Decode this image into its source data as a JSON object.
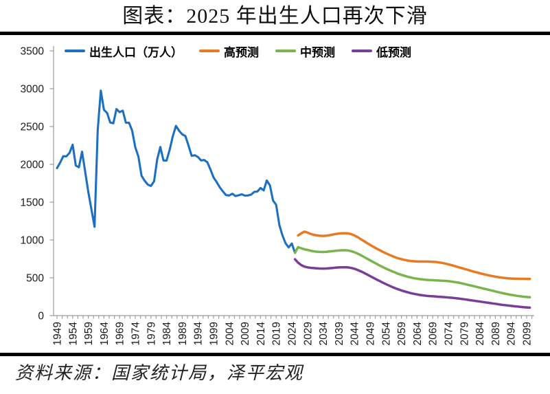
{
  "page": {
    "title": "图表：2025 年出生人口再次下滑",
    "source": "资料来源：国家统计局，泽平宏观"
  },
  "legend": {
    "items": [
      {
        "label": "出生人口（万人）",
        "color": "#1D70C1"
      },
      {
        "label": "高预测",
        "color": "#E87A21"
      },
      {
        "label": "中预测",
        "color": "#79B54A"
      },
      {
        "label": "低预测",
        "color": "#7A3D98"
      }
    ]
  },
  "chart_data": {
    "type": "line",
    "title": "图表：2025 年出生人口再次下滑",
    "xlabel": "",
    "ylabel": "出生人口（万人）",
    "ylim": [
      0,
      3500
    ],
    "x_range": [
      1949,
      2100
    ],
    "grid": false,
    "legend_position": "top",
    "axis_color": "#9B9B9B",
    "tick_label_color": "#1a1a1a",
    "y_ticks": [
      0,
      500,
      1000,
      1500,
      2000,
      2500,
      3000,
      3500
    ],
    "x_ticks": [
      1949,
      1954,
      1959,
      1964,
      1969,
      1974,
      1979,
      1984,
      1989,
      1994,
      1999,
      2004,
      2009,
      2014,
      2019,
      2024,
      2029,
      2034,
      2039,
      2044,
      2049,
      2054,
      2059,
      2064,
      2069,
      2074,
      2079,
      2084,
      2089,
      2094,
      2099
    ],
    "series": [
      {
        "name": "出生人口（万人）",
        "key": "birth",
        "color": "#1D70C1",
        "start_year": 1949,
        "values": [
          1950,
          2023,
          2107,
          2105,
          2151,
          2260,
          1984,
          1961,
          2167,
          1905,
          1635,
          1402,
          1175,
          2451,
          2975,
          2721,
          2679,
          2554,
          2543,
          2731,
          2690,
          2710,
          2551,
          2550,
          2447,
          2226,
          2102,
          1849,
          1783,
          1733,
          1715,
          1776,
          2064,
          2230,
          2052,
          2050,
          2196,
          2374,
          2508,
          2445,
          2396,
          2374,
          2250,
          2113,
          2120,
          2098,
          2052,
          2057,
          2028,
          1934,
          1827,
          1765,
          1696,
          1641,
          1594,
          1588,
          1612,
          1581,
          1591,
          1604,
          1587,
          1588,
          1600,
          1635,
          1640,
          1687,
          1655,
          1786,
          1723,
          1523,
          1465,
          1200,
          1062,
          956,
          902,
          954,
          831
        ]
      },
      {
        "name": "高预测",
        "key": "high",
        "color": "#E87A21",
        "start_year": 2026,
        "values": [
          1060,
          1088,
          1110,
          1098,
          1080,
          1068,
          1060,
          1055,
          1054,
          1057,
          1063,
          1071,
          1079,
          1085,
          1089,
          1090,
          1086,
          1076,
          1060,
          1038,
          1012,
          986,
          960,
          935,
          911,
          888,
          866,
          845,
          825,
          806,
          788,
          772,
          758,
          746,
          736,
          728,
          722,
          718,
          716,
          715,
          715,
          715,
          714,
          712,
          709,
          704,
          697,
          688,
          678,
          667,
          655,
          643,
          631,
          619,
          607,
          595,
          583,
          572,
          561,
          550,
          540,
          531,
          523,
          515,
          508,
          502,
          497,
          493,
          490,
          488,
          487,
          486,
          486,
          485,
          485
        ]
      },
      {
        "name": "中预测",
        "key": "medium",
        "color": "#79B54A",
        "start_year": 2025,
        "values": [
          831,
          905,
          890,
          878,
          868,
          858,
          850,
          845,
          842,
          841,
          843,
          847,
          852,
          857,
          861,
          864,
          865,
          861,
          852,
          838,
          820,
          799,
          777,
          754,
          731,
          708,
          686,
          664,
          643,
          623,
          604,
          586,
          569,
          553,
          539,
          526,
          514,
          504,
          495,
          488,
          482,
          477,
          473,
          470,
          468,
          466,
          464,
          462,
          459,
          455,
          450,
          444,
          437,
          429,
          420,
          410,
          400,
          390,
          380,
          370,
          360,
          350,
          340,
          330,
          320,
          310,
          300,
          291,
          283,
          275,
          268,
          261,
          255,
          250,
          246,
          243
        ]
      },
      {
        "name": "低预测",
        "key": "low",
        "color": "#7A3D98",
        "start_year": 2025,
        "values": [
          745,
          700,
          668,
          648,
          638,
          632,
          628,
          625,
          623,
          622,
          623,
          626,
          630,
          634,
          637,
          639,
          640,
          637,
          630,
          619,
          604,
          586,
          566,
          545,
          523,
          501,
          479,
          458,
          437,
          417,
          398,
          380,
          363,
          347,
          333,
          320,
          308,
          297,
          288,
          280,
          273,
          267,
          262,
          258,
          255,
          252,
          249,
          246,
          243,
          240,
          236,
          232,
          227,
          222,
          216,
          210,
          204,
          198,
          192,
          186,
          180,
          174,
          168,
          162,
          156,
          150,
          144,
          139,
          134,
          129,
          124,
          120,
          116,
          112,
          108,
          105
        ]
      }
    ]
  }
}
